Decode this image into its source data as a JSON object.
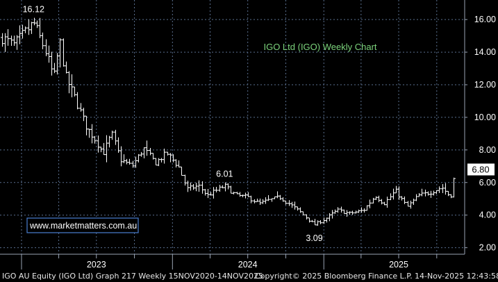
{
  "chart_data": {
    "type": "ohlc",
    "title": "IGO Ltd (IGO) Weekly Chart",
    "colors": {
      "background": "#000000",
      "bars": "#ffffff",
      "grid": "#5a6f8f",
      "title": "#7cd37c",
      "last_price_bg": "#ffffff",
      "last_price_text": "#000000"
    },
    "grid": true,
    "x_axis": {
      "type": "time",
      "start": "2022-11-15",
      "end": "2025-11-14",
      "tick_labels": [
        "2023",
        "2024",
        "2025"
      ]
    },
    "y_axis": {
      "side": "right",
      "ylim": [
        1.6,
        17.2
      ],
      "ticks": [
        2.0,
        4.0,
        6.0,
        8.0,
        10.0,
        12.0,
        14.0,
        16.0
      ],
      "tick_labels": [
        "2.00",
        "4.00",
        "6.00",
        "8.00",
        "10.00",
        "12.00",
        "14.00",
        "16.00"
      ]
    },
    "last_price": "6.80",
    "annotations": [
      {
        "text": "16.12",
        "date": "2023-01-30",
        "value": 16.12
      },
      {
        "text": "6.01",
        "date": "2024-05-06",
        "value": 6.01
      },
      {
        "text": "3.09",
        "date": "2024-12-09",
        "value": 3.09
      }
    ],
    "anchors": [
      [
        "2022-11-15",
        14.9
      ],
      [
        "2022-12-12",
        14.4
      ],
      [
        "2023-01-02",
        15.0
      ],
      [
        "2023-01-30",
        15.8
      ],
      [
        "2023-02-27",
        14.1
      ],
      [
        "2023-03-20",
        12.4
      ],
      [
        "2023-04-03",
        14.7
      ],
      [
        "2023-04-17",
        12.5
      ],
      [
        "2023-05-08",
        11.3
      ],
      [
        "2023-06-05",
        9.5
      ],
      [
        "2023-06-26",
        8.7
      ],
      [
        "2023-07-17",
        7.8
      ],
      [
        "2023-08-07",
        9.0
      ],
      [
        "2023-08-28",
        7.4
      ],
      [
        "2023-09-25",
        7.0
      ],
      [
        "2023-10-23",
        8.1
      ],
      [
        "2023-11-20",
        7.2
      ],
      [
        "2023-12-18",
        7.8
      ],
      [
        "2024-01-15",
        7.0
      ],
      [
        "2024-02-05",
        5.6
      ],
      [
        "2024-03-04",
        5.8
      ],
      [
        "2024-03-25",
        5.2
      ],
      [
        "2024-04-15",
        5.5
      ],
      [
        "2024-05-06",
        5.8
      ],
      [
        "2024-06-03",
        5.2
      ],
      [
        "2024-07-01",
        5.1
      ],
      [
        "2024-07-29",
        4.7
      ],
      [
        "2024-08-19",
        4.9
      ],
      [
        "2024-09-16",
        5.1
      ],
      [
        "2024-10-14",
        4.6
      ],
      [
        "2024-11-04",
        4.2
      ],
      [
        "2024-12-09",
        3.4
      ],
      [
        "2025-01-06",
        3.8
      ],
      [
        "2025-02-03",
        4.3
      ],
      [
        "2025-03-03",
        4.1
      ],
      [
        "2025-04-07",
        4.3
      ],
      [
        "2025-05-05",
        5.2
      ],
      [
        "2025-05-26",
        4.7
      ],
      [
        "2025-06-23",
        5.5
      ],
      [
        "2025-07-21",
        4.5
      ],
      [
        "2025-08-18",
        5.2
      ],
      [
        "2025-09-15",
        5.4
      ],
      [
        "2025-10-13",
        5.7
      ],
      [
        "2025-11-03",
        5.1
      ],
      [
        "2025-11-14",
        6.6
      ]
    ]
  },
  "watermark": "www.marketmatters.com.au",
  "footer": {
    "left": "IGO AU Equity (IGO Ltd) Graph 217 Weekly 15NOV2020-14NOV2025",
    "copyright": "Copyright© 2025 Bloomberg Finance L.P.",
    "timestamp": "14-Nov-2025 12:43:58"
  }
}
